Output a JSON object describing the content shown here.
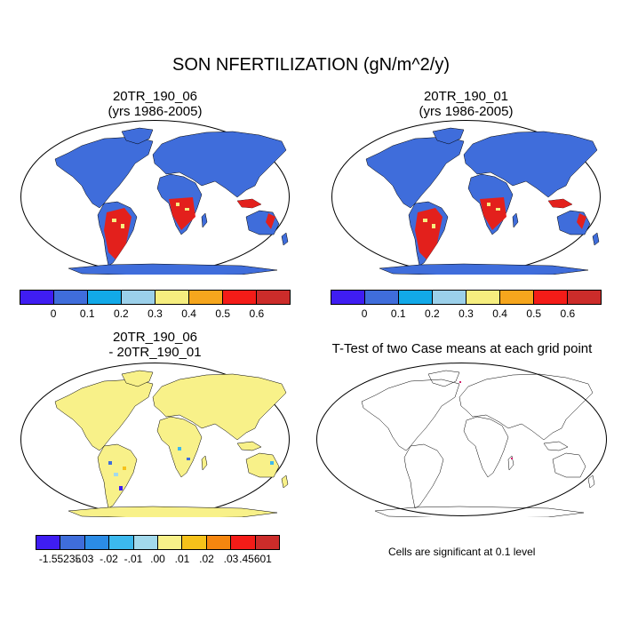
{
  "figure": {
    "title": "SON NFERTILIZATION (gN/m^2/y)"
  },
  "panels": [
    {
      "id": "case1",
      "title_line1": "20TR_190_06",
      "title_line2": "(yrs 1986-2005)"
    },
    {
      "id": "case2",
      "title_line1": "20TR_190_01",
      "title_line2": "(yrs 1986-2005)"
    },
    {
      "id": "diff",
      "title_line1": "20TR_190_06",
      "title_line2": "- 20TR_190_01"
    },
    {
      "id": "ttest",
      "title_line1": "T-Test of two Case means at each grid point"
    }
  ],
  "colorbar_main": {
    "colors": [
      "#3f1df2",
      "#3f6ddb",
      "#12a9e8",
      "#9bd0ea",
      "#f6ee7f",
      "#f6a61d",
      "#f41c18",
      "#cc2c2a"
    ],
    "labels": [
      "0",
      "0.1",
      "0.2",
      "0.3",
      "0.4",
      "0.5",
      "0.6"
    ]
  },
  "colorbar_diff": {
    "colors": [
      "#3f1df2",
      "#3f6ddb",
      "#2b8ce6",
      "#3cb9ee",
      "#a2d9ec",
      "#f8f189",
      "#f6c21a",
      "#f5860f",
      "#f41c18",
      "#cc2c2a"
    ],
    "labels": [
      "-1.55235",
      "-.03",
      "-.02",
      "-.01",
      ".00",
      ".01",
      ".02",
      ".03",
      ".45601"
    ]
  },
  "note": "Cells are significant at 0.1 level",
  "colors": {
    "land_main": "#3f6ddb",
    "land_diff": "#f8f189",
    "outline": "#000000",
    "ocean": "#ffffff"
  }
}
